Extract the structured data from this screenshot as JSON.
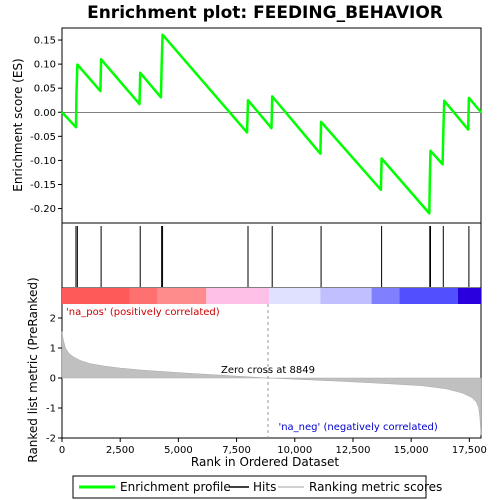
{
  "chart_data": [
    {
      "panel": "enrichment",
      "type": "line",
      "title": "Enrichment plot: FEEDING_BEHAVIOR",
      "ylabel": "Enrichment score (ES)",
      "xlim": [
        0,
        18000
      ],
      "ylim": [
        -0.23,
        0.175
      ],
      "yticks": [
        "0.15",
        "0.10",
        "0.05",
        "0.00",
        "-0.05",
        "-0.10",
        "-0.15",
        "-0.20"
      ],
      "ytick_values": [
        0.15,
        0.1,
        0.05,
        0.0,
        -0.05,
        -0.1,
        -0.15,
        -0.2
      ],
      "color": "#00ff00",
      "x": [
        0,
        600,
        620,
        660,
        1650,
        1680,
        3330,
        3360,
        4250,
        4280,
        4320,
        7950,
        7990,
        9000,
        9030,
        11100,
        11130,
        13700,
        13730,
        15780,
        15800,
        15830,
        16350,
        16380,
        16420,
        17450,
        17480,
        18000
      ],
      "y": [
        0.0,
        -0.031,
        0.035,
        0.099,
        0.044,
        0.11,
        0.017,
        0.082,
        0.031,
        0.096,
        0.161,
        -0.042,
        0.025,
        -0.033,
        0.033,
        -0.086,
        -0.02,
        -0.161,
        -0.096,
        -0.21,
        -0.145,
        -0.08,
        -0.108,
        -0.043,
        0.024,
        -0.036,
        0.03,
        0.0
      ]
    },
    {
      "panel": "hits",
      "type": "scatter",
      "x": [
        600,
        660,
        1680,
        3360,
        4280,
        4320,
        7990,
        9030,
        11130,
        13730,
        15800,
        15830,
        16380,
        17480
      ],
      "color": "#000000"
    },
    {
      "panel": "colorbar",
      "type": "heatmap",
      "segments": [
        {
          "from": 0,
          "to": 2900,
          "color": "#ff5a5a"
        },
        {
          "from": 2900,
          "to": 4100,
          "color": "#ff7070"
        },
        {
          "from": 4100,
          "to": 6200,
          "color": "#ff8c8c"
        },
        {
          "from": 6200,
          "to": 8900,
          "color": "#ffc0e8"
        },
        {
          "from": 8900,
          "to": 11100,
          "color": "#e0e0ff"
        },
        {
          "from": 11100,
          "to": 13300,
          "color": "#c0c0ff"
        },
        {
          "from": 13300,
          "to": 14500,
          "color": "#8080ff"
        },
        {
          "from": 14500,
          "to": 17000,
          "color": "#5050ff"
        },
        {
          "from": 17000,
          "to": 18000,
          "color": "#2a00dd"
        }
      ],
      "label_pos": "'na_pos' (positively correlated)",
      "label_neg": "'na_neg' (negatively correlated)"
    },
    {
      "panel": "ranked_metric",
      "type": "area",
      "ylabel": "Ranked list metric (PreRanked)",
      "xlabel": "Rank in Ordered Dataset",
      "xlim": [
        0,
        18000
      ],
      "ylim": [
        -2,
        3
      ],
      "yticks": [
        "2",
        "1",
        "0",
        "-1",
        "-2"
      ],
      "ytick_values": [
        2,
        1,
        0,
        -1,
        -2
      ],
      "xticks": [
        "0",
        "2,500",
        "5,000",
        "7,500",
        "10,000",
        "12,500",
        "15,000",
        "17,500"
      ],
      "xtick_values": [
        0,
        2500,
        5000,
        7500,
        10000,
        12500,
        15000,
        17500
      ],
      "zero_cross": 8849,
      "zero_cross_label": "Zero cross at 8849",
      "color": "#c0c0c0",
      "x": [
        0,
        50,
        150,
        300,
        500,
        800,
        1200,
        1800,
        2500,
        3500,
        5000,
        6500,
        8000,
        8849,
        10000,
        12000,
        14000,
        15500,
        16500,
        17200,
        17600,
        17800,
        17900,
        17950,
        18000
      ],
      "y": [
        1.55,
        1.3,
        1.0,
        0.82,
        0.7,
        0.58,
        0.48,
        0.4,
        0.33,
        0.26,
        0.18,
        0.11,
        0.04,
        0.0,
        -0.04,
        -0.11,
        -0.19,
        -0.26,
        -0.36,
        -0.5,
        -0.65,
        -0.8,
        -1.0,
        -1.3,
        -1.9
      ]
    }
  ],
  "legend": {
    "items": [
      {
        "label": "Enrichment profile",
        "color": "#00ff00"
      },
      {
        "label": "Hits",
        "color": "#000000"
      },
      {
        "label": "Ranking metric scores",
        "color": "#c0c0c0"
      }
    ]
  }
}
